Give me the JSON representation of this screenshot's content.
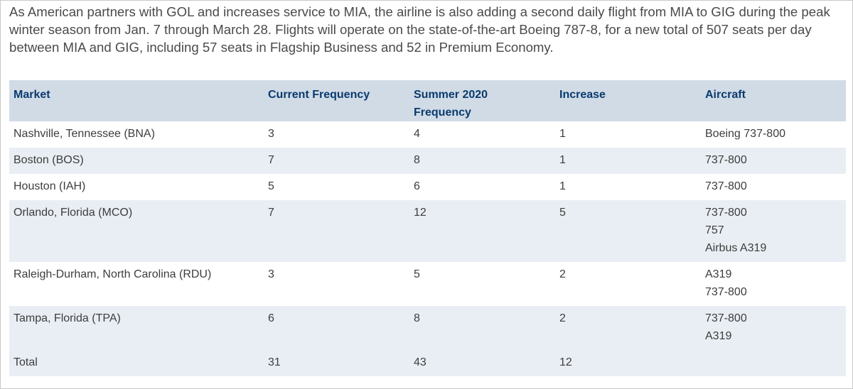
{
  "intro": "As American partners with GOL and increases service to MIA, the airline is also adding a second daily flight from MIA to GIG during the peak winter season from Jan. 7 through March 28. Flights will operate on the state-of-the-art Boeing 787-8, for a new total of 507 seats per day between MIA and GIG, including 57 seats in Flagship Business and 52 in Premium Economy.",
  "table": {
    "headers": {
      "market": "Market",
      "current": "Current Frequency",
      "summer_line1": "Summer 2020",
      "summer_line2": "Frequency",
      "increase": "Increase",
      "aircraft": "Aircraft"
    },
    "rows": [
      {
        "market": "Nashville, Tennessee (BNA)",
        "current": "3",
        "summer": "4",
        "increase": "1",
        "aircraft": [
          "Boeing 737-800"
        ]
      },
      {
        "market": "Boston (BOS)",
        "current": "7",
        "summer": "8",
        "increase": "1",
        "aircraft": [
          "737-800"
        ]
      },
      {
        "market": "Houston (IAH)",
        "current": "5",
        "summer": "6",
        "increase": "1",
        "aircraft": [
          "737-800"
        ]
      },
      {
        "market": "Orlando, Florida (MCO)",
        "current": "7",
        "summer": "12",
        "increase": "5",
        "aircraft": [
          "737-800",
          "757",
          "Airbus A319"
        ]
      },
      {
        "market": "Raleigh-Durham, North Carolina (RDU)",
        "current": "3",
        "summer": "5",
        "increase": "2",
        "aircraft": [
          "A319",
          "737-800"
        ]
      },
      {
        "market": "Tampa, Florida (TPA)",
        "current": "6",
        "summer": "8",
        "increase": "2",
        "aircraft": [
          "737-800",
          "A319"
        ]
      }
    ],
    "total": {
      "label": "Total",
      "current": "31",
      "summer": "43",
      "increase": "12",
      "aircraft": ""
    }
  }
}
